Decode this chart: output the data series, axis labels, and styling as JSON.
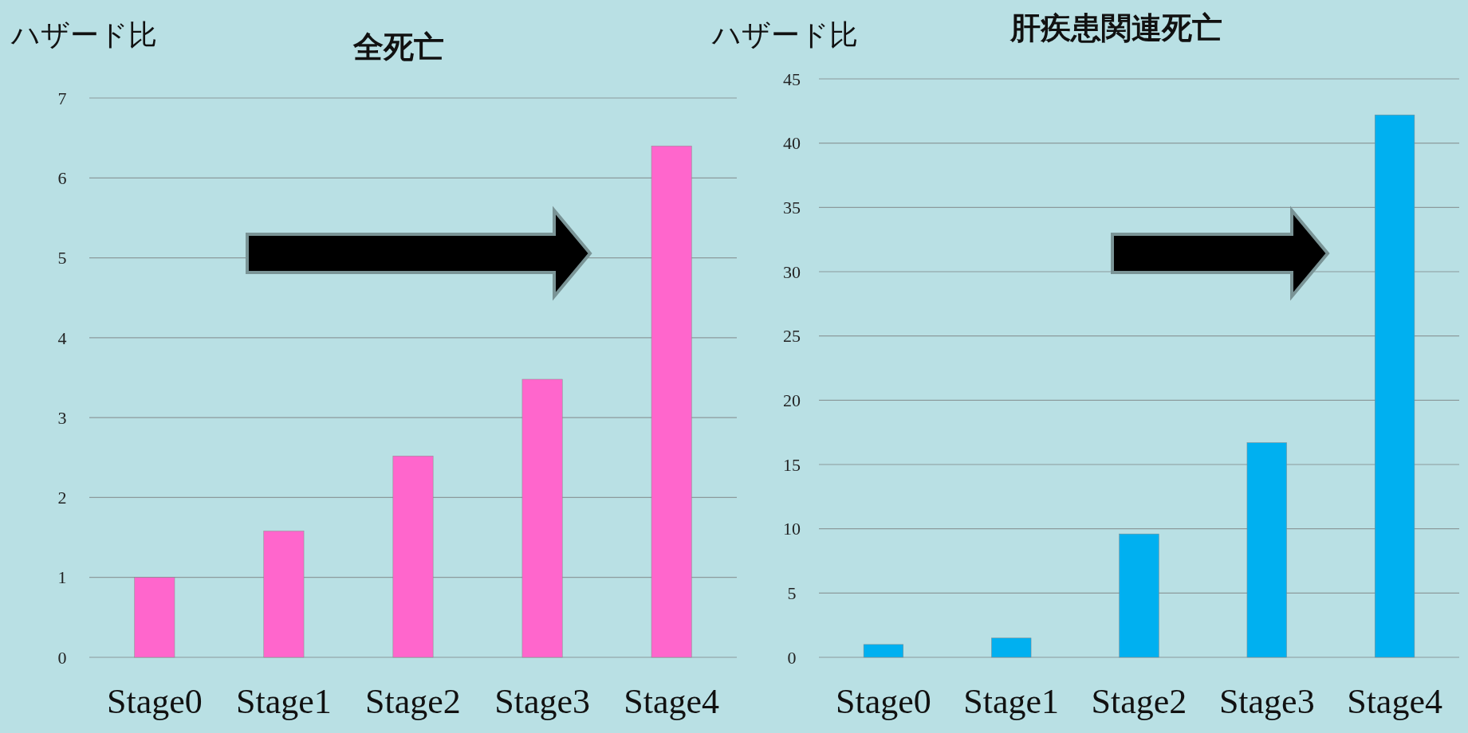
{
  "chart_data": [
    {
      "type": "bar",
      "title": "全死亡",
      "ylabel": "ハザード比",
      "categories": [
        "Stage0",
        "Stage1",
        "Stage2",
        "Stage3",
        "Stage4"
      ],
      "values": [
        1.0,
        1.58,
        2.52,
        3.48,
        6.4
      ],
      "color": "#ff66cc",
      "ylim": [
        0,
        7
      ],
      "yticks": [
        0,
        1,
        2,
        3,
        4,
        5,
        6,
        7
      ],
      "grid": "y"
    },
    {
      "type": "bar",
      "title": "肝疾患関連死亡",
      "ylabel": "ハザード比",
      "categories": [
        "Stage0",
        "Stage1",
        "Stage2",
        "Stage3",
        "Stage4"
      ],
      "values": [
        1.0,
        1.5,
        9.6,
        16.7,
        42.2
      ],
      "color": "#00b0f0",
      "ylim": [
        0,
        45
      ],
      "yticks": [
        0,
        5,
        10,
        15,
        20,
        25,
        30,
        35,
        40,
        45
      ],
      "grid": "y"
    }
  ]
}
